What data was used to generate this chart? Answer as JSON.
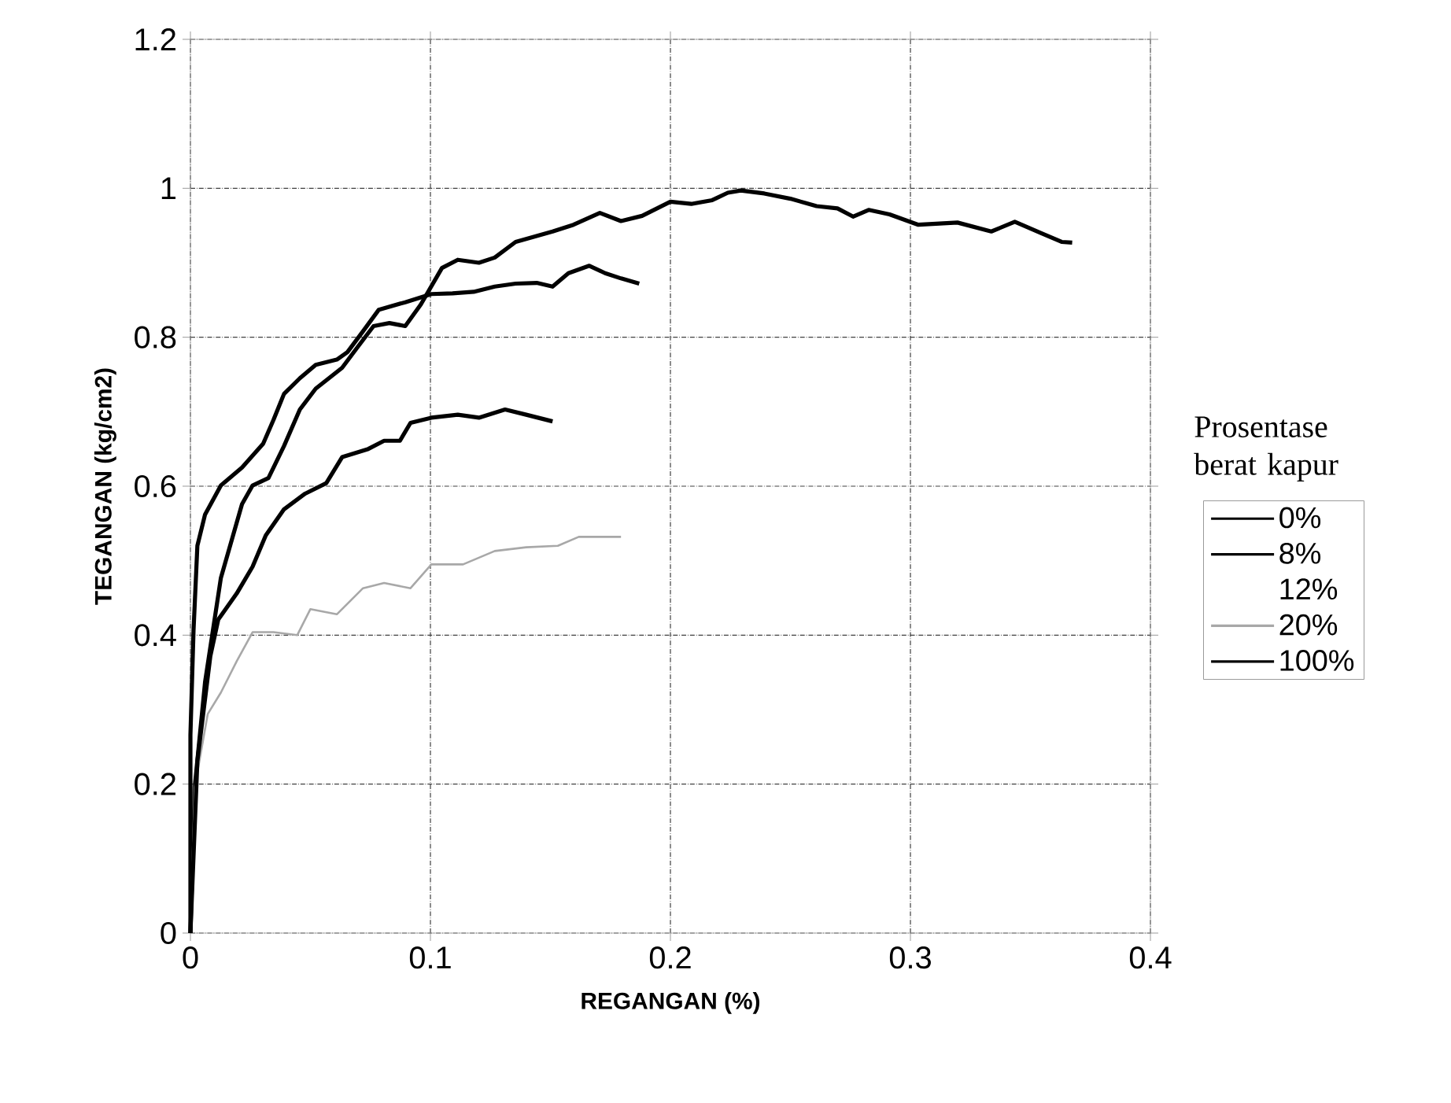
{
  "chart_data": {
    "type": "line",
    "xlabel": "REGANGAN (%)",
    "ylabel": "TEGANGAN (kg/cm2)",
    "legend_title": "Prosentase berat kapur",
    "xlim": [
      0,
      0.4
    ],
    "ylim": [
      0,
      1.2
    ],
    "xticks": [
      0,
      0.1,
      0.2,
      0.3,
      0.4
    ],
    "yticks": [
      0,
      0.2,
      0.4,
      0.6,
      0.8,
      1,
      1.2
    ],
    "grid": true,
    "legend": "right",
    "series": [
      {
        "name": "0%",
        "color": "#000000",
        "x": [
          0,
          0.0018,
          0.0061,
          0.0127,
          0.0215,
          0.0259,
          0.0325,
          0.039,
          0.0456,
          0.0522,
          0.0632,
          0.0697,
          0.0763,
          0.0829,
          0.0895,
          0.096,
          0.1048,
          0.1114,
          0.1202,
          0.1268,
          0.1355,
          0.1509,
          0.1596,
          0.1706,
          0.1794,
          0.1882,
          0.2,
          0.2087,
          0.2174,
          0.2239,
          0.2293,
          0.2391,
          0.25,
          0.2609,
          0.2696,
          0.2761,
          0.2826,
          0.2913,
          0.3033,
          0.3196,
          0.3337,
          0.3435,
          0.3543,
          0.363,
          0.3674
        ],
        "values": [
          0,
          0.196,
          0.337,
          0.477,
          0.576,
          0.601,
          0.611,
          0.654,
          0.703,
          0.731,
          0.759,
          0.787,
          0.815,
          0.819,
          0.815,
          0.844,
          0.893,
          0.904,
          0.9,
          0.907,
          0.928,
          0.942,
          0.951,
          0.967,
          0.956,
          0.963,
          0.982,
          0.979,
          0.984,
          0.994,
          0.997,
          0.993,
          0.986,
          0.976,
          0.973,
          0.962,
          0.971,
          0.965,
          0.951,
          0.954,
          0.942,
          0.955,
          0.94,
          0.928,
          0.927
        ]
      },
      {
        "name": "8%",
        "color": "#000000",
        "x": [
          0,
          0,
          0.0013,
          0.0029,
          0.0061,
          0.0127,
          0.0215,
          0.0303,
          0.0346,
          0.039,
          0.0456,
          0.0522,
          0.061,
          0.0654,
          0.0719,
          0.0785,
          0.0895,
          0.1004,
          0.1092,
          0.118,
          0.1268,
          0.1355,
          0.1443,
          0.1509,
          0.1575,
          0.1662,
          0.1728,
          0.1794,
          0.187
        ],
        "values": [
          0,
          0.266,
          0.407,
          0.52,
          0.562,
          0.601,
          0.625,
          0.657,
          0.689,
          0.724,
          0.745,
          0.763,
          0.77,
          0.78,
          0.808,
          0.837,
          0.847,
          0.858,
          0.859,
          0.861,
          0.868,
          0.872,
          0.873,
          0.868,
          0.886,
          0.896,
          0.886,
          0.879,
          0.872
        ]
      },
      {
        "name": "12%"
      },
      {
        "name": "20%",
        "color": "#a8a8a8",
        "x": [
          0,
          0.0018,
          0.0072,
          0.0127,
          0.0193,
          0.0259,
          0.0346,
          0.0445,
          0.05,
          0.061,
          0.0719,
          0.0807,
          0.0917,
          0.1004,
          0.1136,
          0.1268,
          0.1399,
          0.1531,
          0.1618,
          0.1794
        ],
        "values": [
          0,
          0.196,
          0.294,
          0.323,
          0.365,
          0.404,
          0.404,
          0.4,
          0.435,
          0.428,
          0.463,
          0.47,
          0.463,
          0.495,
          0.495,
          0.513,
          0.518,
          0.52,
          0.532,
          0.532
        ]
      },
      {
        "name": "100%",
        "color": "#000000",
        "x": [
          0,
          0.0029,
          0.0083,
          0.0116,
          0.0193,
          0.0259,
          0.0314,
          0.039,
          0.0478,
          0.0566,
          0.0632,
          0.0741,
          0.0807,
          0.0873,
          0.0917,
          0.1004,
          0.1114,
          0.1202,
          0.1311,
          0.1399,
          0.1509
        ],
        "values": [
          0,
          0.231,
          0.372,
          0.421,
          0.456,
          0.492,
          0.534,
          0.569,
          0.59,
          0.604,
          0.639,
          0.65,
          0.661,
          0.661,
          0.685,
          0.692,
          0.696,
          0.692,
          0.703,
          0.696,
          0.687
        ]
      }
    ]
  }
}
